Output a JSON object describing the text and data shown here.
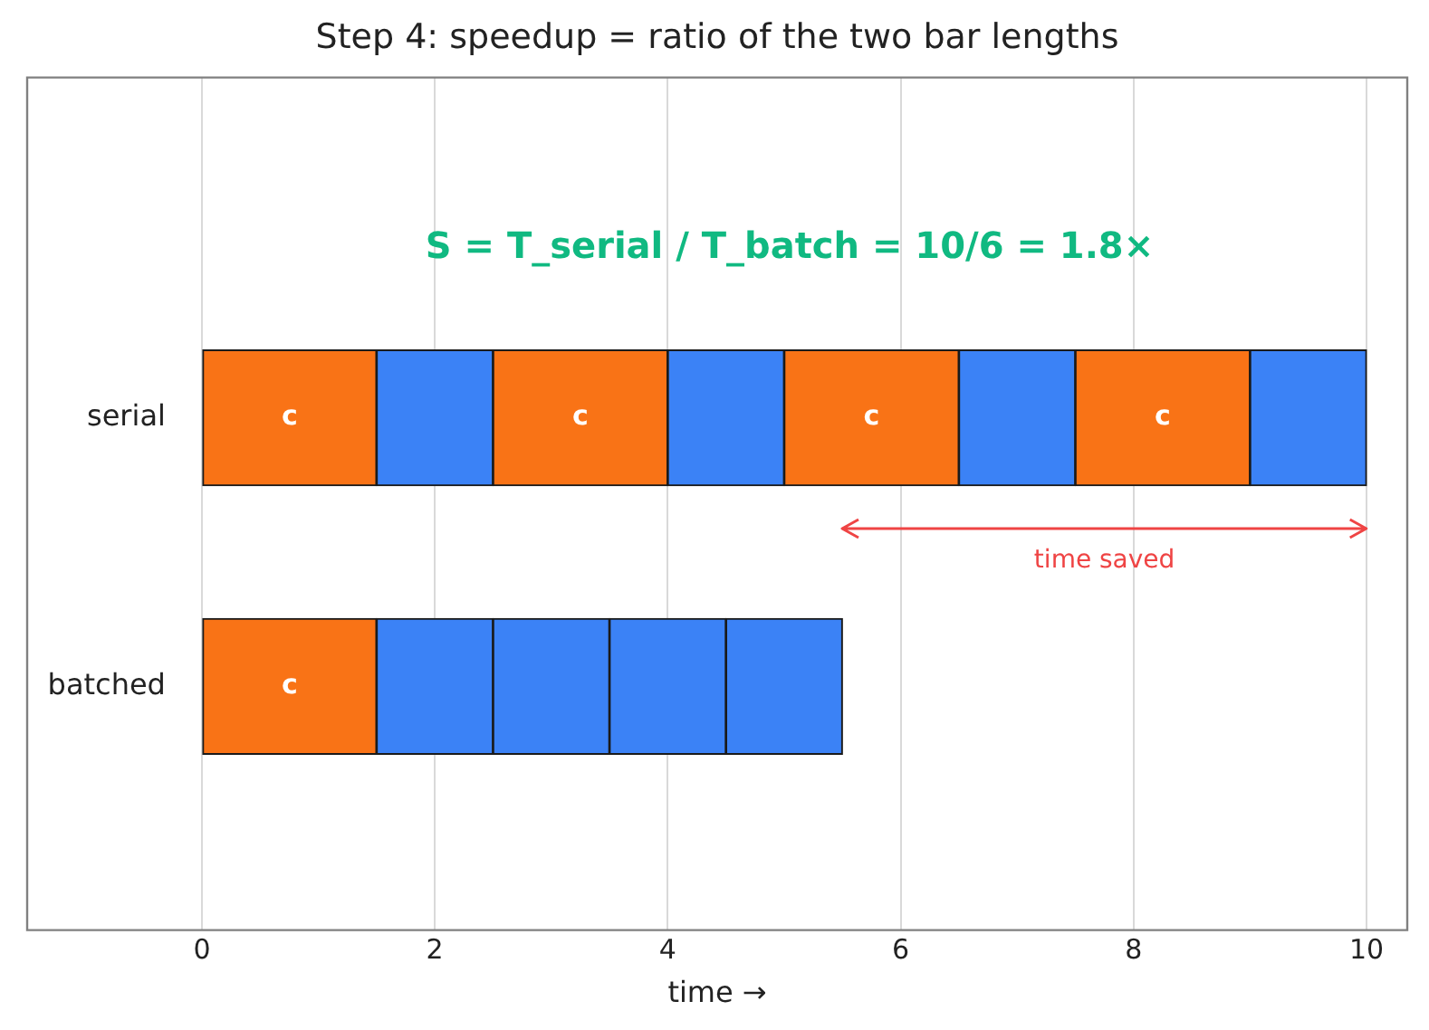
{
  "chart_data": {
    "type": "bar",
    "orientation": "horizontal",
    "stacked": true,
    "title": "Step 4: speedup = ratio of the two bar lengths",
    "xlabel": "time →",
    "categories": [
      "serial",
      "batched"
    ],
    "series": [
      {
        "colors": [
          "#f97316",
          "#f97316"
        ],
        "values": [
          1.5,
          1.5
        ],
        "value_labels": [
          "c",
          "c"
        ]
      },
      {
        "colors": [
          "#3b82f6",
          "#3b82f6"
        ],
        "values": [
          1,
          1
        ]
      },
      {
        "colors": [
          "#f97316",
          "#3b82f6"
        ],
        "values": [
          1.5,
          1
        ],
        "value_labels": [
          "c",
          null
        ]
      },
      {
        "colors": [
          "#3b82f6",
          "#3b82f6"
        ],
        "values": [
          1,
          1
        ]
      },
      {
        "colors": [
          "#f97316",
          "#3b82f6"
        ],
        "values": [
          1.5,
          1
        ],
        "value_labels": [
          "c",
          null
        ]
      },
      {
        "colors": [
          "#3b82f6",
          "#3b82f6"
        ],
        "values": [
          1,
          null
        ]
      },
      {
        "colors": [
          "#f97316",
          "#f97316"
        ],
        "values": [
          1.5,
          null
        ],
        "value_labels": [
          "c",
          null
        ]
      },
      {
        "colors": [
          "#3b82f6",
          "#3b82f6"
        ],
        "values": [
          1,
          null
        ]
      }
    ],
    "xlim": [
      -1.5,
      10.35
    ],
    "xticks": [
      0,
      2,
      4,
      6,
      8,
      10
    ],
    "grid": "x",
    "legend": false,
    "annotations": [
      "S = T_serial / T_batch = 10/6 = 1.8×",
      "time saved"
    ]
  }
}
